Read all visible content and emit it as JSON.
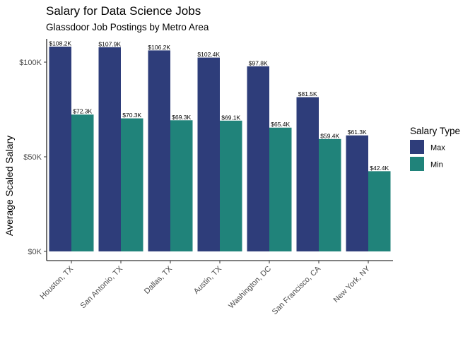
{
  "chart_data": {
    "type": "bar",
    "title": "Salary for Data Science Jobs",
    "subtitle": "Glassdoor Job Postings by Metro Area",
    "xlabel": "",
    "ylabel": "Average Scaled Salary",
    "ylim": [
      0,
      112000
    ],
    "yticks": [
      0,
      50000,
      100000
    ],
    "ytick_labels": [
      "$0K",
      "$50K",
      "$100K"
    ],
    "categories": [
      "Houston, TX",
      "San Antonio, TX",
      "Dallas, TX",
      "Austin, TX",
      "Washington, DC",
      "San Francisco, CA",
      "New York, NY"
    ],
    "series": [
      {
        "name": "Max",
        "color": "#2e3d7a",
        "values": [
          108200,
          107900,
          106200,
          102400,
          97800,
          81500,
          61300
        ],
        "labels": [
          "$108.2K",
          "$107.9K",
          "$106.2K",
          "$102.4K",
          "$97.8K",
          "$81.5K",
          "$61.3K"
        ]
      },
      {
        "name": "Min",
        "color": "#20837a",
        "values": [
          72300,
          70300,
          69300,
          69100,
          65400,
          59400,
          42400
        ],
        "labels": [
          "$72.3K",
          "$70.3K",
          "$69.3K",
          "$69.1K",
          "$65.4K",
          "$59.4K",
          "$42.4K"
        ]
      }
    ],
    "legend": {
      "title": "Salary Type",
      "position": "right"
    },
    "grid": false
  }
}
